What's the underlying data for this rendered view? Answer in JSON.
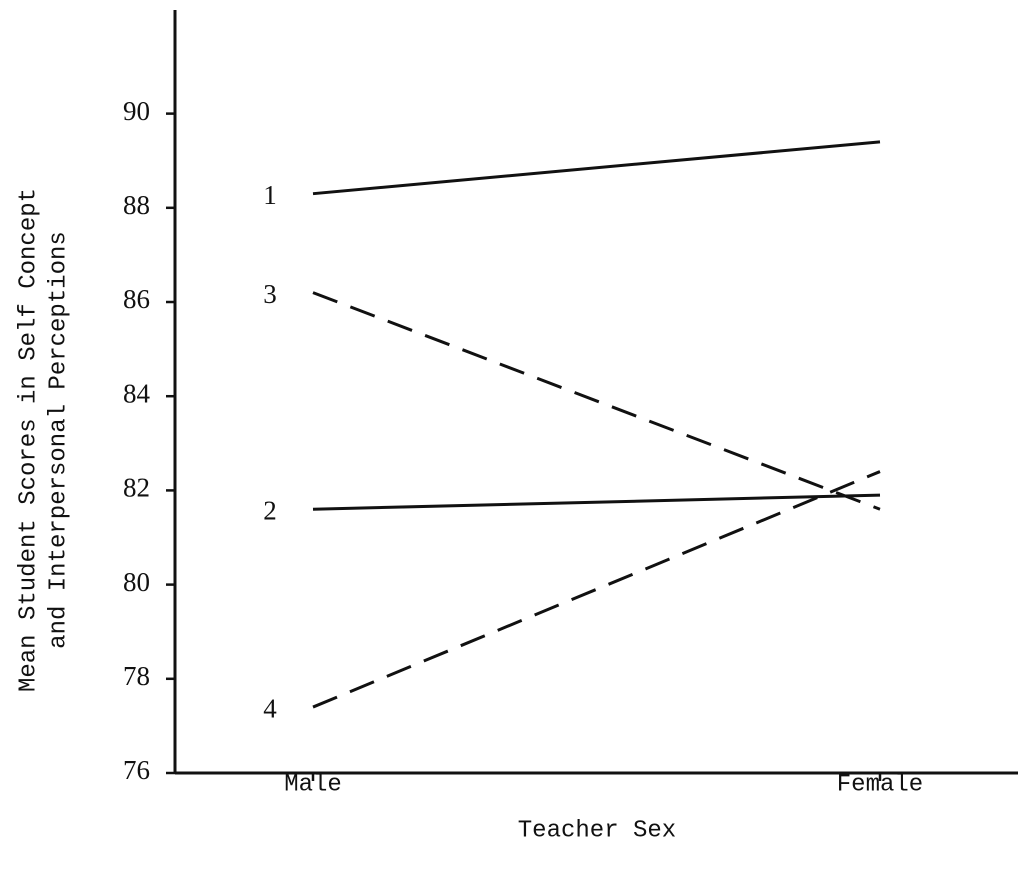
{
  "chart_data": {
    "type": "line",
    "x_label": "Teacher Sex",
    "y_label": [
      "Mean Student Scores in Self Concept",
      "and Interpersonal Perceptions"
    ],
    "categories": [
      "Male",
      "Female"
    ],
    "series": [
      {
        "name": "1",
        "color": "#111111",
        "dashed": false,
        "values": [
          88.3,
          89.4
        ]
      },
      {
        "name": "2",
        "color": "#111111",
        "dashed": false,
        "values": [
          81.6,
          81.9
        ]
      },
      {
        "name": "3",
        "color": "#111111",
        "dashed": true,
        "values": [
          86.2,
          81.6
        ]
      },
      {
        "name": "4",
        "color": "#111111",
        "dashed": true,
        "values": [
          77.4,
          82.4
        ]
      }
    ],
    "ylim": [
      76,
      92.2
    ],
    "yticks": [
      76,
      78,
      80,
      82,
      84,
      86,
      88,
      90
    ]
  }
}
